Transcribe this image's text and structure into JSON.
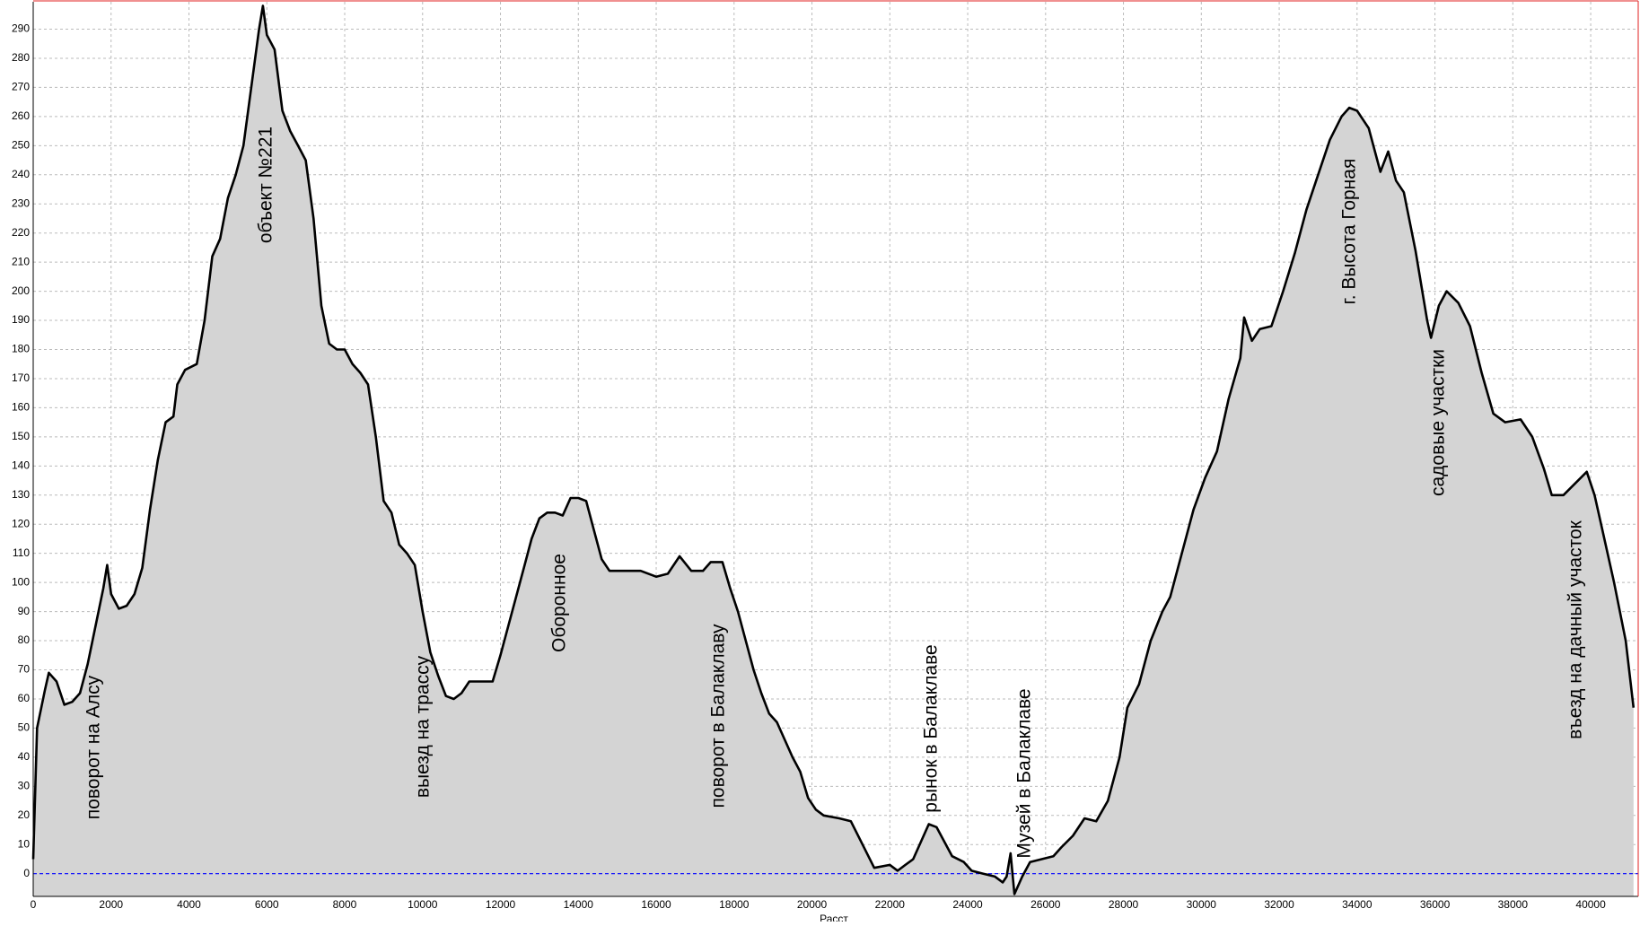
{
  "chart_data": {
    "type": "area",
    "x_label": "Расст",
    "x": [
      0,
      100,
      300,
      400,
      600,
      800,
      1000,
      1200,
      1400,
      1600,
      1800,
      1900,
      2000,
      2200,
      2400,
      2600,
      2800,
      3000,
      3200,
      3400,
      3600,
      3700,
      3900,
      4200,
      4400,
      4600,
      4800,
      5000,
      5200,
      5400,
      5600,
      5800,
      5900,
      6000,
      6200,
      6400,
      6600,
      6800,
      7000,
      7200,
      7400,
      7600,
      7800,
      8000,
      8200,
      8400,
      8600,
      8800,
      9000,
      9200,
      9400,
      9600,
      9800,
      10000,
      10200,
      10400,
      10600,
      10800,
      11000,
      11200,
      11600,
      11800,
      12000,
      12200,
      12400,
      12600,
      12800,
      13000,
      13200,
      13400,
      13600,
      13800,
      14000,
      14200,
      14400,
      14600,
      14800,
      15200,
      15600,
      16000,
      16300,
      16600,
      16900,
      17200,
      17400,
      17700,
      17900,
      18100,
      18300,
      18500,
      18700,
      18900,
      19100,
      19300,
      19500,
      19700,
      19900,
      20100,
      20300,
      20700,
      21000,
      21300,
      21600,
      22000,
      22200,
      22400,
      22600,
      22800,
      23000,
      23200,
      23400,
      23600,
      23900,
      24100,
      24400,
      24700,
      24900,
      25000,
      25100,
      25200,
      25400,
      25600,
      25900,
      26200,
      26400,
      26700,
      27000,
      27300,
      27600,
      27900,
      28100,
      28400,
      28700,
      29000,
      29200,
      29500,
      29800,
      30100,
      30400,
      30700,
      31000,
      31100,
      31300,
      31500,
      31800,
      32100,
      32400,
      32700,
      33000,
      33300,
      33600,
      33800,
      34000,
      34300,
      34600,
      34800,
      35000,
      35200,
      35500,
      35800,
      35900,
      36100,
      36300,
      36600,
      36900,
      37200,
      37500,
      37800,
      38200,
      38500,
      38800,
      39000,
      39300,
      39600,
      39900,
      40100,
      40300,
      40600,
      40900,
      41100
    ],
    "values": [
      5,
      50,
      63,
      69,
      66,
      58,
      59,
      62,
      72,
      85,
      98,
      106,
      96,
      91,
      92,
      96,
      105,
      125,
      142,
      155,
      157,
      168,
      173,
      175,
      190,
      212,
      218,
      232,
      240,
      250,
      270,
      290,
      298,
      288,
      283,
      262,
      255,
      250,
      245,
      225,
      195,
      182,
      180,
      180,
      175,
      172,
      168,
      150,
      128,
      124,
      113,
      110,
      106,
      90,
      76,
      68,
      61,
      60,
      62,
      66,
      66,
      66,
      75,
      85,
      95,
      105,
      115,
      122,
      124,
      124,
      123,
      129,
      129,
      128,
      118,
      108,
      104,
      104,
      104,
      102,
      103,
      109,
      104,
      104,
      107,
      107,
      98,
      90,
      80,
      70,
      62,
      55,
      52,
      46,
      40,
      35,
      26,
      22,
      20,
      19,
      18,
      10,
      2,
      3,
      1,
      3,
      5,
      11,
      17,
      16,
      11,
      6,
      4,
      1,
      0,
      -1,
      -3,
      -1,
      7,
      -7,
      -1,
      4,
      5,
      6,
      9,
      13,
      19,
      18,
      25,
      40,
      57,
      65,
      80,
      90,
      95,
      110,
      125,
      136,
      145,
      163,
      177,
      191,
      183,
      187,
      188,
      200,
      213,
      228,
      240,
      252,
      260,
      263,
      262,
      256,
      241,
      248,
      238,
      234,
      214,
      190,
      184,
      195,
      200,
      196,
      188,
      172,
      158,
      155,
      156,
      150,
      139,
      130,
      130,
      134,
      138,
      130,
      118,
      100,
      80,
      57
    ],
    "color": "#000000",
    "fill": "#d4d4d4",
    "reference_line": 0,
    "reference_color": "#0000ff",
    "xlim": [
      0,
      41220
    ],
    "ylim": [
      -7.8,
      299.4
    ],
    "xticks": [
      0,
      2000,
      4000,
      6000,
      8000,
      10000,
      12000,
      14000,
      16000,
      18000,
      20000,
      22000,
      24000,
      26000,
      28000,
      30000,
      32000,
      34000,
      36000,
      38000,
      40000
    ],
    "yticks": [
      0,
      10,
      20,
      30,
      40,
      50,
      60,
      70,
      80,
      90,
      100,
      110,
      120,
      130,
      140,
      150,
      160,
      170,
      180,
      190,
      200,
      210,
      220,
      230,
      240,
      250,
      260,
      270,
      280,
      290
    ],
    "grid": true,
    "annotations": [
      "поворот на Алсу",
      "объект №221",
      "выезд на трассу",
      "Оборонное",
      "поворот в Балаклаву",
      "рынок в Балаклаве",
      "Музей в Балаклаве",
      "г. Высота Горная",
      "садовые участки",
      "въезд на дачный участок"
    ]
  }
}
